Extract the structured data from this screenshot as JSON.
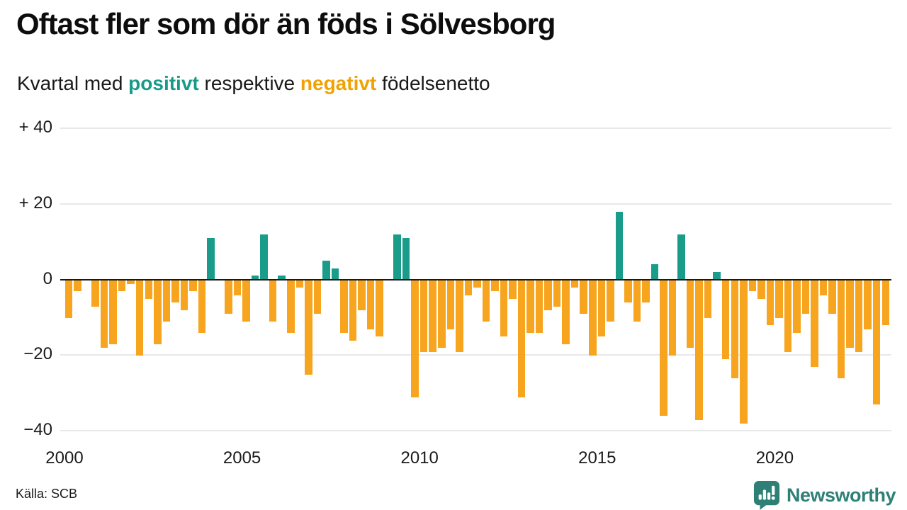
{
  "header": {
    "title": "Oftast fler som dör än föds i Sölvesborg",
    "subtitle_part1": "Kvartal med ",
    "subtitle_positive_word": "positivt",
    "subtitle_part2": " respektive ",
    "subtitle_negative_word": "negativt",
    "subtitle_part3": " födelsenetto"
  },
  "footer": {
    "source": "Källa: SCB",
    "brand": "Newsworthy"
  },
  "colors": {
    "positive_bar": "#1a9c8a",
    "negative_bar": "#f7a41f",
    "positive_text": "#189a88",
    "negative_text": "#f0a202",
    "brand_teal": "#2e8076",
    "gridline": "#e8e8e8",
    "axis": "#1a1a1a"
  },
  "chart_data": {
    "type": "bar",
    "title": "Oftast fler som dör än föds i Sölvesborg",
    "subtitle": "Kvartal med positivt respektive negativt födelsenetto",
    "ylabel": "födelsenetto",
    "xlabel": "kvartal",
    "ylim": [
      -40,
      40
    ],
    "grid": true,
    "start_quarter": "2000 Q1",
    "end_quarter": "2023 Q1",
    "y_ticks": [
      {
        "label": "+ 40",
        "value": 40
      },
      {
        "label": "+ 20",
        "value": 20
      },
      {
        "label": "0",
        "value": 0
      },
      {
        "label": "−20",
        "value": -20
      },
      {
        "label": "−40",
        "value": -40
      }
    ],
    "x_ticks": [
      {
        "label": "2000",
        "quarter_index": 0
      },
      {
        "label": "2005",
        "quarter_index": 20
      },
      {
        "label": "2010",
        "quarter_index": 40
      },
      {
        "label": "2015",
        "quarter_index": 60
      },
      {
        "label": "2020",
        "quarter_index": 80
      }
    ],
    "values": [
      -10,
      -3,
      0,
      -7,
      -18,
      -17,
      -3,
      -1,
      -20,
      -5,
      -17,
      -11,
      -6,
      -8,
      -3,
      -14,
      11,
      0,
      -9,
      -4,
      -11,
      1,
      12,
      -11,
      1,
      -14,
      -2,
      -25,
      -9,
      5,
      3,
      -14,
      -16,
      -8,
      -13,
      -15,
      0,
      12,
      11,
      -31,
      -19,
      -19,
      -18,
      -13,
      -19,
      -4,
      -2,
      -11,
      -3,
      -15,
      -5,
      -31,
      -14,
      -14,
      -8,
      -7,
      -17,
      -2,
      -9,
      -20,
      -15,
      -11,
      18,
      -6,
      -11,
      -6,
      4,
      -36,
      -20,
      12,
      -18,
      -37,
      -10,
      2,
      -21,
      -26,
      -38,
      -3,
      -5,
      -12,
      -10,
      -19,
      -14,
      -9,
      -23,
      -4,
      -9,
      -26,
      -18,
      -19,
      -13,
      -33,
      -12
    ]
  }
}
